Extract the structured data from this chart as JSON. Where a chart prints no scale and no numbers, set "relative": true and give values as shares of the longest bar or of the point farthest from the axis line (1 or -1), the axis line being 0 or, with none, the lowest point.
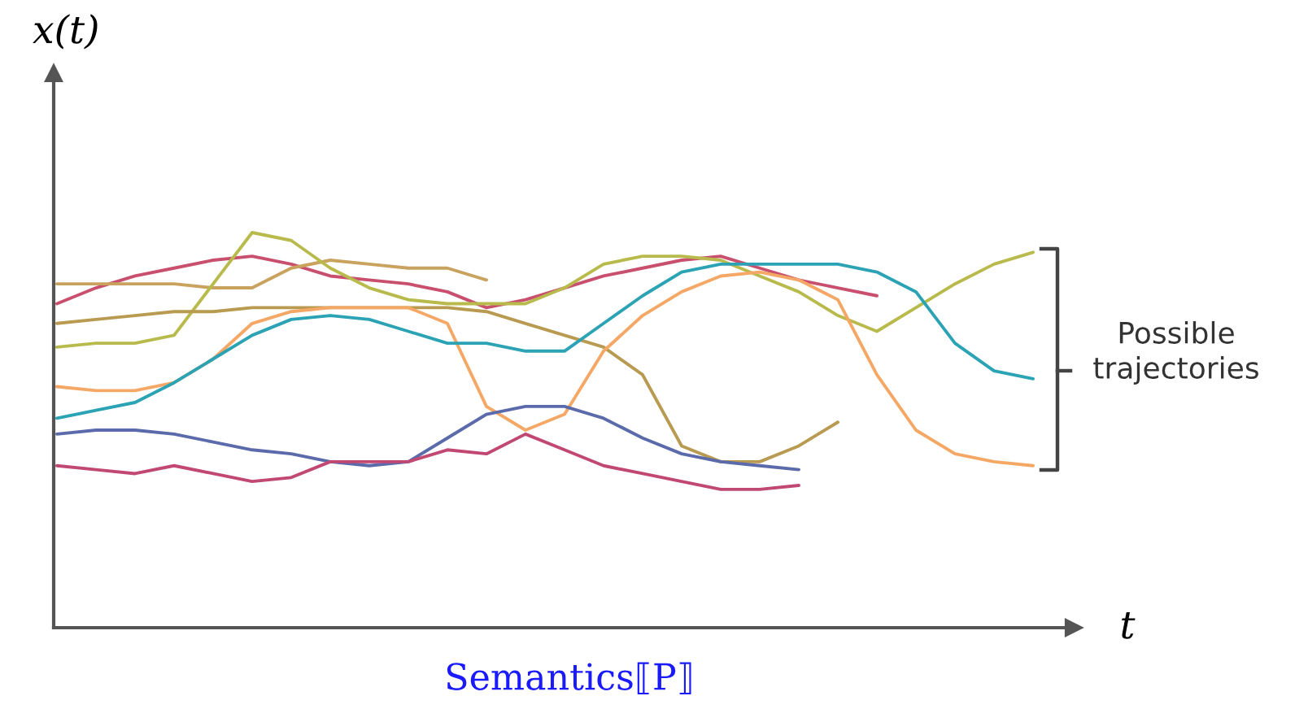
{
  "chart_data": {
    "type": "line",
    "relative": true,
    "xlabel": "t",
    "ylabel": "x(t)",
    "annotations": [
      "Possible trajectories",
      "Semantics⟦P⟧"
    ],
    "categories": [
      null,
      null,
      null,
      null,
      null,
      null,
      null,
      null,
      null,
      null,
      null,
      null,
      null,
      null,
      null,
      null,
      null,
      null,
      null,
      null,
      null,
      null,
      null,
      null,
      null,
      null
    ],
    "series": [
      {
        "color": "#c8506e",
        "values": [
          0.82,
          0.86,
          0.89,
          0.91,
          0.93,
          0.94,
          0.92,
          0.89,
          0.88,
          0.87,
          0.85,
          0.81,
          0.83,
          0.86,
          0.89,
          0.91,
          0.93,
          0.94,
          0.91,
          0.88,
          0.86,
          0.84,
          null,
          null,
          null,
          null
        ]
      },
      {
        "color": "#c9a25e",
        "values": [
          0.87,
          0.87,
          0.87,
          0.87,
          0.86,
          0.86,
          0.91,
          0.93,
          0.92,
          0.91,
          0.91,
          0.88,
          null,
          null,
          null,
          null,
          null,
          null,
          null,
          null,
          null,
          null,
          null,
          null,
          null,
          null
        ]
      },
      {
        "color": "#b8bb4c",
        "values": [
          0.71,
          0.72,
          0.72,
          0.74,
          0.87,
          1.0,
          0.98,
          0.91,
          0.86,
          0.83,
          0.82,
          0.82,
          0.82,
          0.86,
          0.92,
          0.94,
          0.94,
          0.93,
          0.89,
          0.85,
          0.79,
          0.75,
          0.81,
          0.87,
          0.92,
          0.95
        ]
      },
      {
        "color": "#b89a50",
        "values": [
          0.77,
          0.78,
          0.79,
          0.8,
          0.8,
          0.81,
          0.81,
          0.81,
          0.81,
          0.81,
          0.81,
          0.8,
          0.77,
          0.74,
          0.71,
          0.64,
          0.46,
          0.42,
          0.42,
          0.46,
          0.52,
          null,
          null,
          null,
          null,
          null
        ]
      },
      {
        "color": "#f5a866",
        "values": [
          0.61,
          0.6,
          0.6,
          0.62,
          0.68,
          0.77,
          0.8,
          0.81,
          0.81,
          0.81,
          0.77,
          0.56,
          0.5,
          0.54,
          0.7,
          0.79,
          0.85,
          0.89,
          0.9,
          0.88,
          0.83,
          0.64,
          0.5,
          0.44,
          0.42,
          0.41
        ]
      },
      {
        "color": "#2ba3b5",
        "values": [
          0.53,
          0.55,
          0.57,
          0.62,
          0.68,
          0.74,
          0.78,
          0.79,
          0.78,
          0.75,
          0.72,
          0.72,
          0.7,
          0.7,
          0.77,
          0.84,
          0.9,
          0.92,
          0.92,
          0.92,
          0.92,
          0.9,
          0.85,
          0.72,
          0.65,
          0.63
        ]
      },
      {
        "color": "#5a6aaa",
        "values": [
          0.49,
          0.5,
          0.5,
          0.49,
          0.47,
          0.45,
          0.44,
          0.42,
          0.41,
          0.42,
          0.48,
          0.54,
          0.56,
          0.56,
          0.53,
          0.48,
          0.44,
          0.42,
          0.41,
          0.4,
          null,
          null,
          null,
          null,
          null,
          null
        ]
      },
      {
        "color": "#c04872",
        "values": [
          0.41,
          0.4,
          0.39,
          0.41,
          0.39,
          0.37,
          0.38,
          0.42,
          0.42,
          0.42,
          0.45,
          0.44,
          0.49,
          0.45,
          0.41,
          0.39,
          0.37,
          0.35,
          0.35,
          0.36,
          null,
          null,
          null,
          null,
          null,
          null
        ]
      }
    ]
  }
}
